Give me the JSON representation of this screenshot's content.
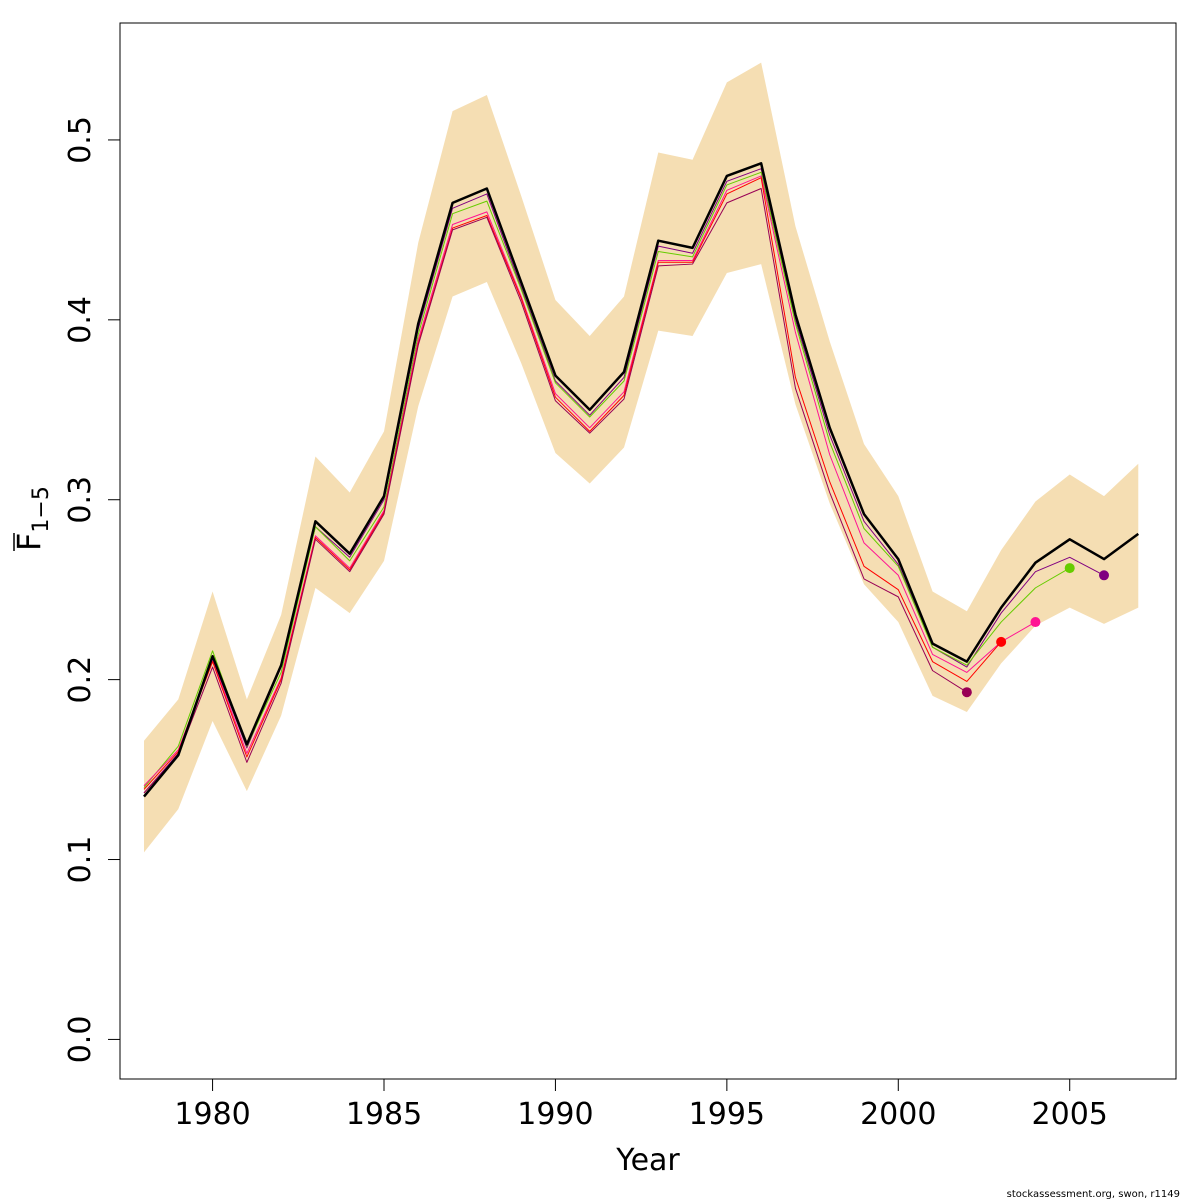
{
  "chart_data": {
    "type": "line",
    "xlabel": "Year",
    "ylabel": "F",
    "ylabel_overline": true,
    "ylabel_subscript": "1−5",
    "xlim": [
      1977.3,
      2008.1
    ],
    "ylim": [
      -0.022,
      0.565
    ],
    "x_ticks": [
      1980,
      1985,
      1990,
      1995,
      2000,
      2005
    ],
    "x_tick_labels": [
      "1980",
      "1985",
      "1990",
      "1995",
      "2000",
      "2005"
    ],
    "y_ticks": [
      0.0,
      0.1,
      0.2,
      0.3,
      0.4,
      0.5
    ],
    "y_tick_labels": [
      "0.0",
      "0.1",
      "0.2",
      "0.3",
      "0.4",
      "0.5"
    ],
    "grid": false,
    "legend": "none",
    "band": {
      "color": "#f5deb3",
      "x": [
        1978,
        1979,
        1980,
        1981,
        1982,
        1983,
        1984,
        1985,
        1986,
        1987,
        1988,
        1989,
        1990,
        1991,
        1992,
        1993,
        1994,
        1995,
        1996,
        1997,
        1998,
        1999,
        2000,
        2001,
        2002,
        2003,
        2004,
        2005,
        2006,
        2007
      ],
      "lower": [
        0.104,
        0.128,
        0.177,
        0.138,
        0.18,
        0.251,
        0.237,
        0.266,
        0.352,
        0.413,
        0.421,
        0.376,
        0.326,
        0.309,
        0.329,
        0.394,
        0.391,
        0.426,
        0.431,
        0.353,
        0.298,
        0.253,
        0.232,
        0.191,
        0.182,
        0.209,
        0.23,
        0.24,
        0.231,
        0.24
      ],
      "upper": [
        0.166,
        0.189,
        0.249,
        0.189,
        0.236,
        0.324,
        0.304,
        0.338,
        0.443,
        0.516,
        0.525,
        0.469,
        0.411,
        0.391,
        0.413,
        0.493,
        0.489,
        0.532,
        0.543,
        0.452,
        0.388,
        0.331,
        0.302,
        0.249,
        0.238,
        0.272,
        0.299,
        0.314,
        0.302,
        0.32
      ]
    },
    "series": [
      {
        "color": "#000000",
        "width": 2.5,
        "x": [
          1978,
          1979,
          1980,
          1981,
          1982,
          1983,
          1984,
          1985,
          1986,
          1987,
          1988,
          1989,
          1990,
          1991,
          1992,
          1993,
          1994,
          1995,
          1996,
          1997,
          1998,
          1999,
          2000,
          2001,
          2002,
          2003,
          2004,
          2005,
          2006,
          2007
        ],
        "values": [
          0.135,
          0.158,
          0.213,
          0.164,
          0.208,
          0.288,
          0.27,
          0.302,
          0.398,
          0.465,
          0.473,
          0.421,
          0.369,
          0.35,
          0.371,
          0.444,
          0.44,
          0.48,
          0.487,
          0.403,
          0.34,
          0.292,
          0.267,
          0.22,
          0.21,
          0.24,
          0.265,
          0.278,
          0.267,
          0.281
        ]
      },
      {
        "color": "#800080",
        "width": 1,
        "x": [
          1978,
          1979,
          1980,
          1981,
          1982,
          1983,
          1984,
          1985,
          1986,
          1987,
          1988,
          1989,
          1990,
          1991,
          1992,
          1993,
          1994,
          1995,
          1996,
          1997,
          1998,
          1999,
          2000,
          2001,
          2002,
          2003,
          2004,
          2005,
          2006
        ],
        "values": [
          0.137,
          0.159,
          0.212,
          0.162,
          0.207,
          0.285,
          0.268,
          0.3,
          0.395,
          0.462,
          0.47,
          0.418,
          0.366,
          0.347,
          0.368,
          0.441,
          0.437,
          0.477,
          0.484,
          0.4,
          0.336,
          0.288,
          0.264,
          0.218,
          0.207,
          0.237,
          0.26,
          0.268,
          0.258
        ],
        "end_point": {
          "x": 2006,
          "y": 0.258
        }
      },
      {
        "color": "#66cc00",
        "width": 1,
        "x": [
          1978,
          1979,
          1980,
          1981,
          1982,
          1983,
          1984,
          1985,
          1986,
          1987,
          1988,
          1989,
          1990,
          1991,
          1992,
          1993,
          1994,
          1995,
          1996,
          1997,
          1998,
          1999,
          2000,
          2001,
          2002,
          2003,
          2004,
          2005
        ],
        "values": [
          0.14,
          0.163,
          0.216,
          0.163,
          0.204,
          0.285,
          0.266,
          0.296,
          0.392,
          0.459,
          0.466,
          0.417,
          0.365,
          0.346,
          0.366,
          0.438,
          0.435,
          0.475,
          0.482,
          0.398,
          0.332,
          0.284,
          0.263,
          0.218,
          0.208,
          0.232,
          0.251,
          0.262
        ],
        "end_point": {
          "x": 2005,
          "y": 0.262
        }
      },
      {
        "color": "#ff1493",
        "width": 1,
        "x": [
          1978,
          1979,
          1980,
          1981,
          1982,
          1983,
          1984,
          1985,
          1986,
          1987,
          1988,
          1989,
          1990,
          1991,
          1992,
          1993,
          1994,
          1995,
          1996,
          1997,
          1998,
          1999,
          2000,
          2001,
          2002,
          2003,
          2004
        ],
        "values": [
          0.141,
          0.161,
          0.211,
          0.159,
          0.201,
          0.28,
          0.262,
          0.294,
          0.389,
          0.453,
          0.46,
          0.413,
          0.359,
          0.34,
          0.36,
          0.433,
          0.433,
          0.472,
          0.48,
          0.393,
          0.325,
          0.276,
          0.258,
          0.214,
          0.204,
          0.221,
          0.232
        ],
        "end_point": {
          "x": 2004,
          "y": 0.232
        }
      },
      {
        "color": "#ff0000",
        "width": 1,
        "x": [
          1978,
          1979,
          1980,
          1981,
          1982,
          1983,
          1984,
          1985,
          1986,
          1987,
          1988,
          1989,
          1990,
          1991,
          1992,
          1993,
          1994,
          1995,
          1996,
          1997,
          1998,
          1999,
          2000,
          2001,
          2002,
          2003
        ],
        "values": [
          0.139,
          0.16,
          0.21,
          0.157,
          0.2,
          0.279,
          0.261,
          0.293,
          0.387,
          0.451,
          0.458,
          0.412,
          0.357,
          0.338,
          0.358,
          0.432,
          0.432,
          0.47,
          0.479,
          0.368,
          0.31,
          0.263,
          0.25,
          0.21,
          0.199,
          0.221
        ],
        "end_point": {
          "x": 2003,
          "y": 0.221
        }
      },
      {
        "color": "#990055",
        "width": 1,
        "x": [
          1978,
          1979,
          1980,
          1981,
          1982,
          1983,
          1984,
          1985,
          1986,
          1987,
          1988,
          1989,
          1990,
          1991,
          1992,
          1993,
          1994,
          1995,
          1996,
          1997,
          1998,
          1999,
          2000,
          2001,
          2002
        ],
        "values": [
          0.137,
          0.158,
          0.207,
          0.154,
          0.198,
          0.278,
          0.26,
          0.292,
          0.386,
          0.45,
          0.457,
          0.41,
          0.355,
          0.337,
          0.356,
          0.43,
          0.431,
          0.465,
          0.473,
          0.362,
          0.304,
          0.256,
          0.246,
          0.205,
          0.193
        ],
        "end_point": {
          "x": 2002,
          "y": 0.193
        }
      }
    ]
  },
  "credit": "stockassessment.org, swon, r1149"
}
